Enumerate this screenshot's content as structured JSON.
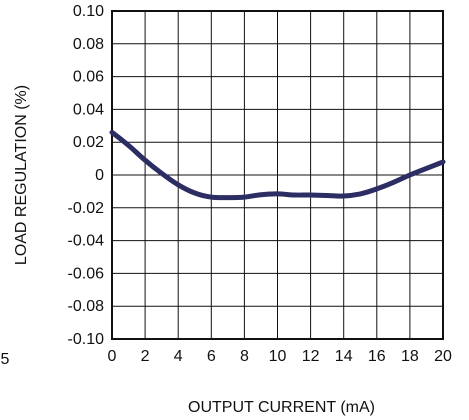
{
  "chart_data": {
    "type": "line",
    "xlabel": "OUTPUT CURRENT (mA)",
    "ylabel": "LOAD REGULATION (%)",
    "xlim": [
      0,
      20
    ],
    "ylim": [
      -0.1,
      0.1
    ],
    "x_ticks": [
      0,
      2,
      4,
      6,
      8,
      10,
      12,
      14,
      16,
      18,
      20
    ],
    "x_tick_labels": [
      "0",
      "2",
      "4",
      "6",
      "8",
      "10",
      "12",
      "14",
      "16",
      "18",
      "20"
    ],
    "y_ticks": [
      0.1,
      0.08,
      0.06,
      0.04,
      0.02,
      0,
      -0.02,
      -0.04,
      -0.06,
      -0.08,
      -0.1
    ],
    "y_tick_labels": [
      "0.10",
      "0.08",
      "0.06",
      "0.04",
      "0.02",
      "0",
      "-0.02",
      "-0.04",
      "-0.06",
      "-0.08",
      "-0.10"
    ],
    "grid": true,
    "series": [
      {
        "color": "#2b2d63",
        "x": [
          0,
          1,
          2,
          3,
          4,
          5,
          6,
          7,
          8,
          9,
          10,
          11,
          12,
          13,
          14,
          15,
          16,
          17,
          18,
          19,
          20
        ],
        "y": [
          0.026,
          0.018,
          0.009,
          0.001,
          -0.006,
          -0.011,
          -0.0135,
          -0.0138,
          -0.0135,
          -0.012,
          -0.0115,
          -0.0122,
          -0.0122,
          -0.0125,
          -0.0128,
          -0.0115,
          -0.0085,
          -0.0045,
          0.0,
          0.004,
          0.008
        ]
      }
    ]
  },
  "stray_text": "5"
}
